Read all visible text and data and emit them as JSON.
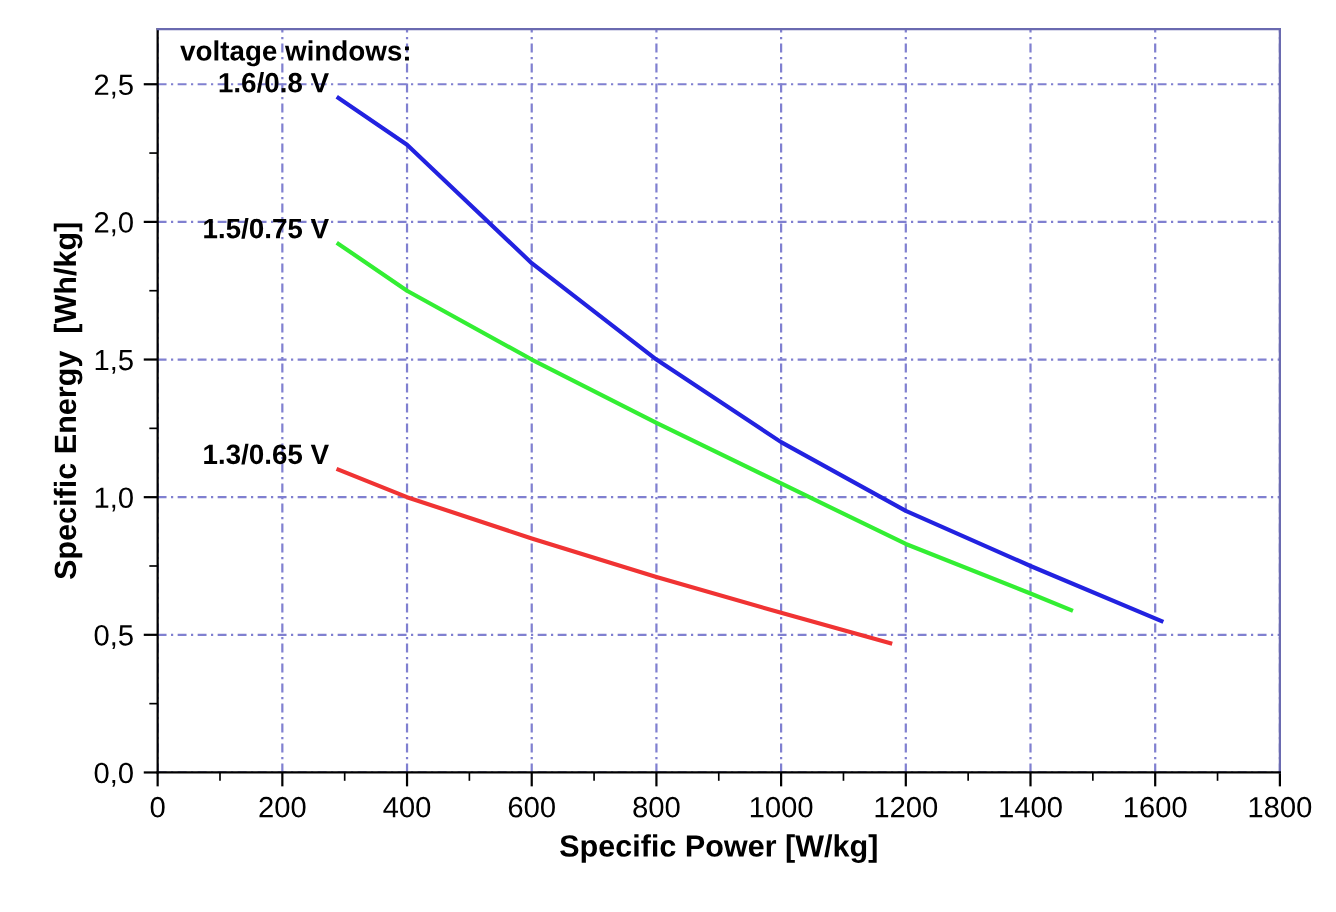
{
  "chart_data": {
    "type": "line",
    "xlabel": "Specific Power [W/kg]",
    "ylabel": "Specific Energy  [Wh/kg]",
    "legend_title": "voltage windows:",
    "xlim": [
      0,
      1800
    ],
    "ylim": [
      0,
      2.7
    ],
    "xticks": [
      0,
      {
        "value": 100,
        "label": null
      },
      200,
      {
        "value": 300,
        "label": null
      },
      400,
      {
        "value": 500,
        "label": null
      },
      600,
      {
        "value": 700,
        "label": null
      },
      800,
      {
        "value": 900,
        "label": null
      },
      1000,
      {
        "value": 1100,
        "label": null
      },
      1200,
      {
        "value": 1300,
        "label": null
      },
      1400,
      {
        "value": 1500,
        "label": null
      },
      1600,
      {
        "value": 1700,
        "label": null
      },
      1800
    ],
    "yticks": [
      {
        "value": 0,
        "label": "0,0"
      },
      {
        "value": 0.25,
        "label": null
      },
      {
        "value": 0.5,
        "label": "0,5"
      },
      {
        "value": 0.75,
        "label": null
      },
      {
        "value": 1.0,
        "label": "1,0"
      },
      {
        "value": 1.25,
        "label": null
      },
      {
        "value": 1.5,
        "label": "1,5"
      },
      {
        "value": 1.75,
        "label": null
      },
      {
        "value": 2.0,
        "label": "2,0"
      },
      {
        "value": 2.25,
        "label": null
      },
      {
        "value": 2.5,
        "label": "2,5"
      }
    ],
    "grid": true,
    "legend": false,
    "marker": "none",
    "line_style": "solid",
    "series": [
      {
        "name": "1.6/0.8 V",
        "color": "#2222e0",
        "x": [
          290,
          400,
          600,
          800,
          1000,
          1200,
          1400,
          1610
        ],
        "values": [
          2.45,
          2.28,
          1.85,
          1.5,
          1.2,
          0.95,
          0.75,
          0.55
        ]
      },
      {
        "name": "1.5/0.75 V",
        "color": "#33ee33",
        "x": [
          290,
          400,
          600,
          800,
          1000,
          1200,
          1400,
          1465
        ],
        "values": [
          1.92,
          1.75,
          1.5,
          1.27,
          1.05,
          0.83,
          0.65,
          0.59
        ]
      },
      {
        "name": "1.3/0.65 V",
        "color": "#f03333",
        "x": [
          290,
          400,
          600,
          800,
          1000,
          1175
        ],
        "values": [
          1.1,
          1.0,
          0.85,
          0.71,
          0.58,
          0.47
        ]
      }
    ]
  }
}
